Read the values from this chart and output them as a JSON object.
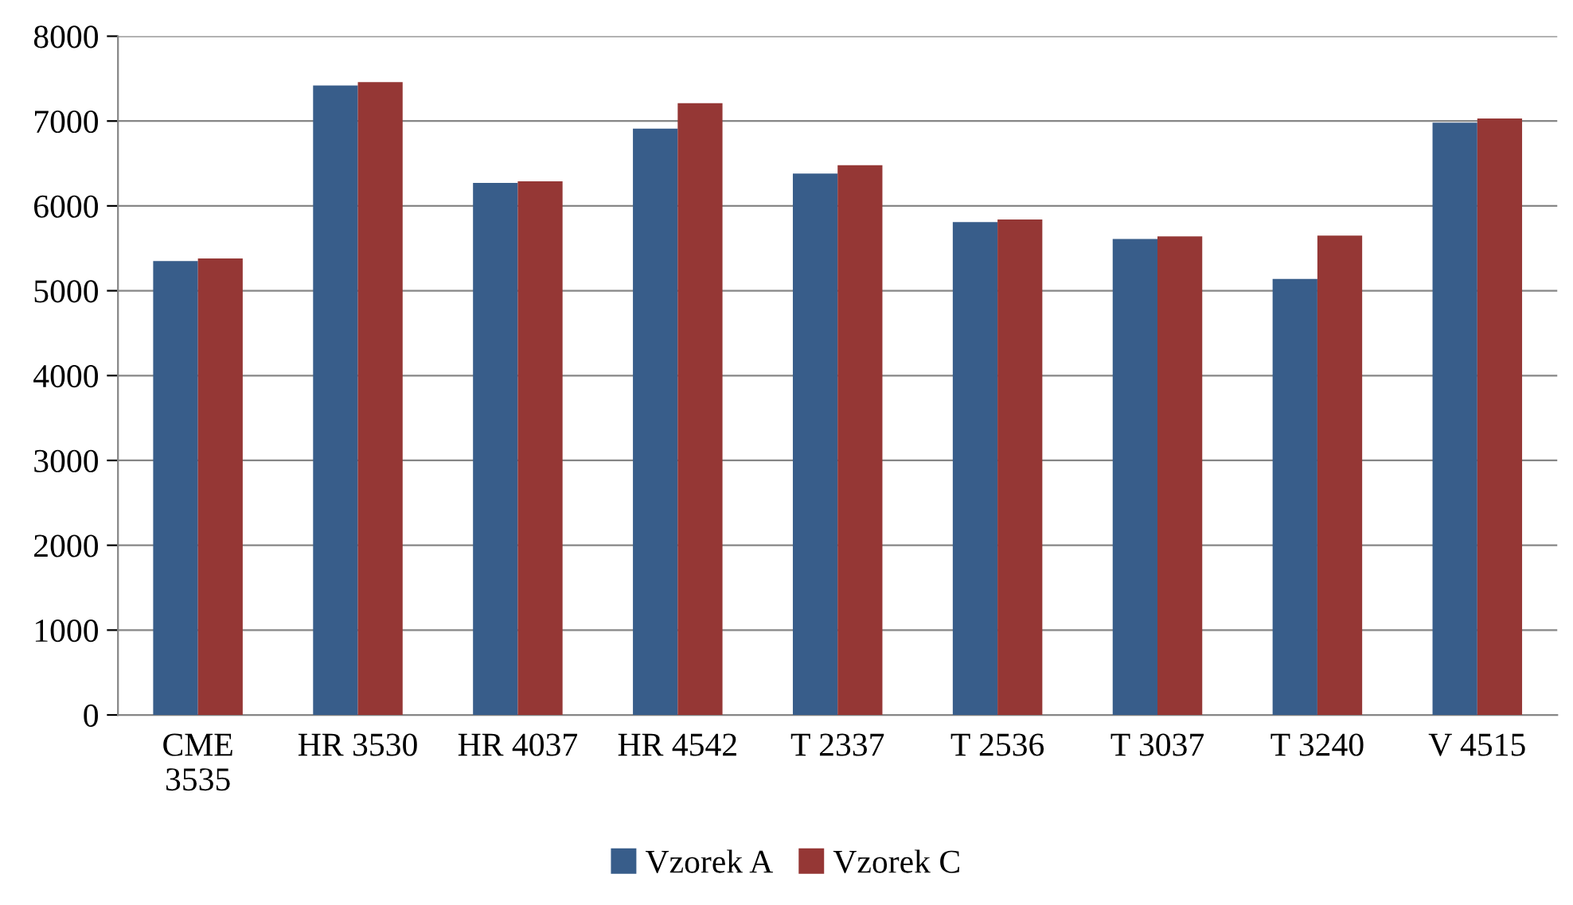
{
  "chart_data": {
    "type": "bar",
    "categories": [
      "CME\n3535",
      "HR 3530",
      "HR 4037",
      "HR 4542",
      "T 2337",
      "T 2536",
      "T 3037",
      "T 3240",
      "V 4515"
    ],
    "series": [
      {
        "name": "Vzorek A",
        "color": "#385d8a",
        "values": [
          5350,
          7420,
          6270,
          6910,
          6380,
          5810,
          5610,
          5140,
          6980
        ]
      },
      {
        "name": "Vzorek C",
        "color": "#953735",
        "values": [
          5380,
          7460,
          6290,
          7210,
          6480,
          5840,
          5640,
          5650,
          7030
        ]
      }
    ],
    "ylim": [
      0,
      8000
    ],
    "yticks": [
      0,
      1000,
      2000,
      3000,
      4000,
      5000,
      6000,
      7000,
      8000
    ],
    "grid": "y",
    "legend": "bottom"
  }
}
